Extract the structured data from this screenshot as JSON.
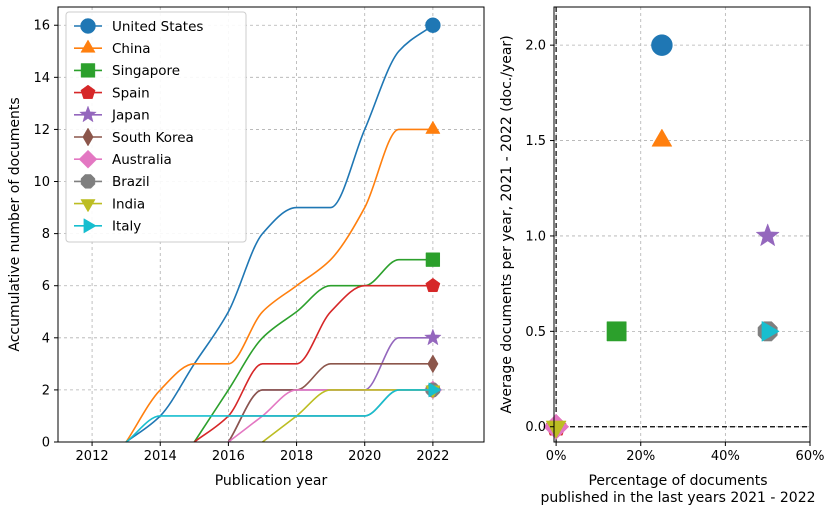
{
  "chart_data": [
    {
      "type": "line",
      "xlabel": "Publication year",
      "ylabel": "Accumulative number of documents",
      "xlim": [
        2011,
        2023.5
      ],
      "ylim": [
        0,
        16.7
      ],
      "x_ticks": [
        2012,
        2014,
        2016,
        2018,
        2020,
        2022
      ],
      "y_ticks": [
        0,
        2,
        4,
        6,
        8,
        10,
        12,
        14,
        16
      ],
      "grid": true,
      "legend_position": "top-left",
      "series": [
        {
          "name": "United States",
          "color": "#1f77b4",
          "marker": "circle",
          "x": [
            2013,
            2014,
            2015,
            2016,
            2017,
            2018,
            2019,
            2020,
            2021,
            2022
          ],
          "y": [
            0,
            1,
            3,
            5,
            8,
            9,
            9,
            12,
            15,
            16
          ]
        },
        {
          "name": "China",
          "color": "#ff7f0e",
          "marker": "triangle-up",
          "x": [
            2013,
            2014,
            2015,
            2016,
            2017,
            2018,
            2019,
            2020,
            2021,
            2022
          ],
          "y": [
            0,
            2,
            3,
            3,
            5,
            6,
            7,
            9,
            12,
            12
          ]
        },
        {
          "name": "Singapore",
          "color": "#2ca02c",
          "marker": "square",
          "x": [
            2015,
            2016,
            2017,
            2018,
            2019,
            2020,
            2021,
            2022
          ],
          "y": [
            0,
            2,
            4,
            5,
            6,
            6,
            7,
            7
          ]
        },
        {
          "name": "Spain",
          "color": "#d62728",
          "marker": "pentagon",
          "x": [
            2015,
            2016,
            2017,
            2018,
            2019,
            2020,
            2021,
            2022
          ],
          "y": [
            0,
            1,
            3,
            3,
            5,
            6,
            6,
            6
          ]
        },
        {
          "name": "Japan",
          "color": "#9467bd",
          "marker": "star",
          "x": [
            2016,
            2017,
            2018,
            2019,
            2020,
            2021,
            2022
          ],
          "y": [
            0,
            2,
            2,
            2,
            2,
            4,
            4
          ]
        },
        {
          "name": "South Korea",
          "color": "#8c564b",
          "marker": "thin-diamond",
          "x": [
            2016,
            2017,
            2018,
            2019,
            2020,
            2021,
            2022
          ],
          "y": [
            0,
            2,
            2,
            3,
            3,
            3,
            3
          ]
        },
        {
          "name": "Australia",
          "color": "#e377c2",
          "marker": "diamond",
          "x": [
            2016,
            2017,
            2018,
            2019,
            2020,
            2021,
            2022
          ],
          "y": [
            0,
            1,
            2,
            2,
            2,
            2,
            2
          ]
        },
        {
          "name": "Brazil",
          "color": "#7f7f7f",
          "marker": "octagon",
          "x": [
            2016,
            2017,
            2018,
            2019,
            2020,
            2021,
            2022
          ],
          "y": [
            1,
            1,
            1,
            1,
            1,
            2,
            2
          ]
        },
        {
          "name": "India",
          "color": "#bcbd22",
          "marker": "triangle-down",
          "x": [
            2017,
            2018,
            2019,
            2020,
            2021,
            2022
          ],
          "y": [
            0,
            1,
            2,
            2,
            2,
            2
          ]
        },
        {
          "name": "Italy",
          "color": "#17becf",
          "marker": "triangle-right",
          "x": [
            2013,
            2014,
            2015,
            2016,
            2017,
            2018,
            2019,
            2020,
            2021,
            2022
          ],
          "y": [
            0,
            1,
            1,
            1,
            1,
            1,
            1,
            1,
            2,
            2
          ]
        }
      ]
    },
    {
      "type": "scatter",
      "xlabel_lines": [
        "Percentage of documents",
        "published in the last years 2021 - 2022"
      ],
      "ylabel": "Average documents per year, 2021 - 2022 (doc./year)",
      "xlim": [
        -0.5,
        60
      ],
      "ylim": [
        -0.08,
        2.2
      ],
      "x_ticks": [
        0,
        20,
        40,
        60
      ],
      "x_tick_labels": [
        "0%",
        "20%",
        "40%",
        "60%"
      ],
      "y_ticks": [
        0.0,
        0.5,
        1.0,
        1.5,
        2.0
      ],
      "y_tick_labels": [
        "0.0",
        "0.5",
        "1.0",
        "1.5",
        "2.0"
      ],
      "grid": true,
      "reference_lines": {
        "horizontal_y": 0,
        "vertical_x": 0,
        "style": "dashed"
      },
      "points": [
        {
          "name": "United States",
          "x": 25.0,
          "y": 2.0
        },
        {
          "name": "China",
          "x": 25.0,
          "y": 1.5
        },
        {
          "name": "Singapore",
          "x": 14.3,
          "y": 0.5
        },
        {
          "name": "Spain",
          "x": 0.0,
          "y": 0.0
        },
        {
          "name": "Japan",
          "x": 50.0,
          "y": 1.0
        },
        {
          "name": "South Korea",
          "x": 0.0,
          "y": 0.0
        },
        {
          "name": "Australia",
          "x": 0.0,
          "y": 0.0
        },
        {
          "name": "Brazil",
          "x": 50.0,
          "y": 0.5
        },
        {
          "name": "India",
          "x": 0.0,
          "y": 0.0
        },
        {
          "name": "Italy",
          "x": 50.0,
          "y": 0.5
        }
      ]
    }
  ]
}
